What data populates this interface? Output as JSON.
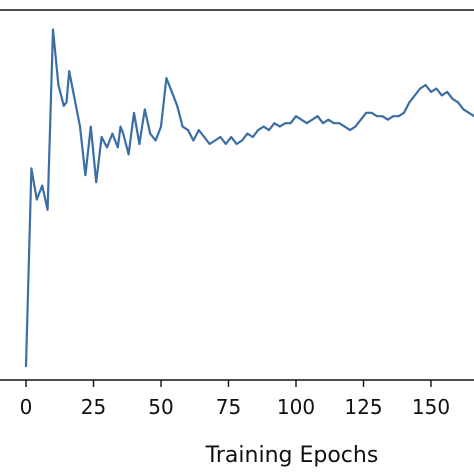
{
  "chart_data": {
    "type": "line",
    "title": "",
    "xlabel": "Training Epochs",
    "ylabel": "",
    "xlim": [
      -6,
      168
    ],
    "ylim": [
      0,
      1
    ],
    "x_ticks": [
      0,
      25,
      50,
      75,
      100,
      125,
      150
    ],
    "x_tick_labels": [
      "0",
      "25",
      "50",
      "75",
      "100",
      "125",
      "150"
    ],
    "grid": false,
    "line_color": "#3a6ea5",
    "series": [
      {
        "x": [
          0,
          2,
          4,
          6,
          8,
          10,
          12,
          14,
          15,
          16,
          18,
          20,
          22,
          24,
          26,
          28,
          30,
          32,
          34,
          35,
          36,
          38,
          40,
          42,
          44,
          46,
          48,
          50,
          52,
          54,
          56,
          58,
          60,
          62,
          64,
          66,
          68,
          70,
          72,
          74,
          76,
          78,
          80,
          82,
          84,
          86,
          88,
          90,
          92,
          94,
          96,
          98,
          100,
          102,
          104,
          106,
          108,
          110,
          112,
          114,
          116,
          118,
          120,
          122,
          124,
          126,
          128,
          130,
          132,
          134,
          136,
          138,
          140,
          142,
          144,
          146,
          148,
          150,
          152,
          154,
          156,
          158,
          160,
          162,
          164,
          166,
          168
        ],
        "values": [
          0.02,
          0.59,
          0.5,
          0.54,
          0.47,
          0.99,
          0.83,
          0.77,
          0.78,
          0.87,
          0.79,
          0.71,
          0.57,
          0.71,
          0.55,
          0.68,
          0.65,
          0.69,
          0.65,
          0.71,
          0.69,
          0.63,
          0.75,
          0.66,
          0.76,
          0.69,
          0.67,
          0.71,
          0.85,
          0.81,
          0.77,
          0.71,
          0.7,
          0.67,
          0.7,
          0.68,
          0.66,
          0.67,
          0.68,
          0.66,
          0.68,
          0.66,
          0.67,
          0.69,
          0.68,
          0.7,
          0.71,
          0.7,
          0.72,
          0.71,
          0.72,
          0.72,
          0.74,
          0.73,
          0.72,
          0.73,
          0.74,
          0.72,
          0.73,
          0.72,
          0.72,
          0.71,
          0.7,
          0.71,
          0.73,
          0.75,
          0.75,
          0.74,
          0.74,
          0.73,
          0.74,
          0.74,
          0.75,
          0.78,
          0.8,
          0.82,
          0.83,
          0.81,
          0.82,
          0.8,
          0.81,
          0.79,
          0.78,
          0.76,
          0.75,
          0.74,
          0.73
        ]
      }
    ]
  }
}
